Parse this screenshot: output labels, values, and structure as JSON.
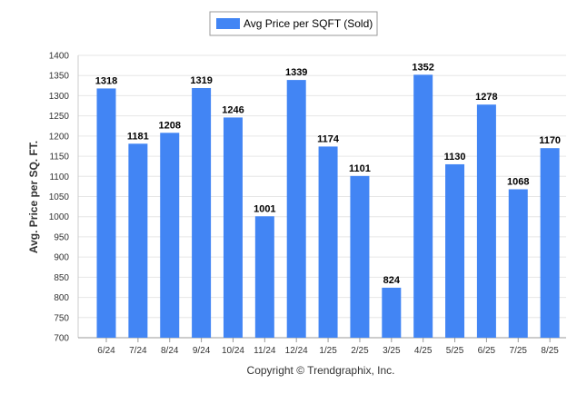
{
  "chart_data": {
    "type": "bar",
    "categories": [
      "6/24",
      "7/24",
      "8/24",
      "9/24",
      "10/24",
      "11/24",
      "12/24",
      "1/25",
      "2/25",
      "3/25",
      "4/25",
      "5/25",
      "6/25",
      "7/25",
      "8/25"
    ],
    "series": [
      {
        "name": "Avg Price per SQFT (Sold)",
        "values": [
          1318,
          1181,
          1208,
          1319,
          1246,
          1001,
          1339,
          1174,
          1101,
          824,
          1352,
          1130,
          1278,
          1068,
          1170
        ]
      }
    ],
    "ylabel": "Avg. Price per SQ. FT.",
    "xlabel": "",
    "ylim": [
      700,
      1400
    ],
    "yticks": [
      700,
      750,
      800,
      850,
      900,
      950,
      1000,
      1050,
      1100,
      1150,
      1200,
      1250,
      1300,
      1350,
      1400
    ],
    "grid": true,
    "legend_position": "top-center",
    "bar_color": "#4285f4"
  },
  "footer": {
    "copyright": "Copyright © Trendgraphix, Inc."
  }
}
